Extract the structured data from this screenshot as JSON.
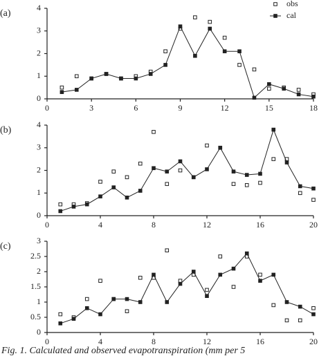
{
  "chart_data": [
    {
      "type": "line",
      "label": "(a)",
      "x": [
        1,
        2,
        3,
        4,
        5,
        6,
        7,
        8,
        9,
        10,
        11,
        12,
        13,
        14,
        15,
        16,
        17,
        18
      ],
      "xlim": [
        0,
        18
      ],
      "xticks": [
        0,
        3,
        6,
        9,
        12,
        15,
        18
      ],
      "ylim": [
        0,
        4
      ],
      "yticks": [
        0,
        1,
        2,
        3,
        4
      ],
      "legend": "upper right",
      "series": [
        {
          "name": "obs",
          "color": "#222222",
          "marker": "open-square",
          "line": false,
          "values": [
            0.5,
            1.0,
            0.9,
            1.1,
            0.9,
            1.0,
            1.2,
            2.1,
            3.1,
            3.6,
            3.4,
            2.7,
            1.5,
            1.3,
            0.45,
            0.5,
            0.4,
            0.2
          ]
        },
        {
          "name": "cal",
          "color": "#222222",
          "marker": "square",
          "line": true,
          "values": [
            0.3,
            0.4,
            0.9,
            1.1,
            0.9,
            0.9,
            1.1,
            1.5,
            3.2,
            1.9,
            3.1,
            2.1,
            2.1,
            0.05,
            0.65,
            0.45,
            0.2,
            0.1
          ]
        }
      ]
    },
    {
      "type": "line",
      "label": "(b)",
      "x": [
        1,
        2,
        3,
        4,
        5,
        6,
        7,
        8,
        9,
        10,
        11,
        12,
        13,
        14,
        15,
        16,
        17,
        18,
        19,
        20
      ],
      "xlim": [
        0,
        20
      ],
      "xticks": [
        0,
        4,
        8,
        12,
        16,
        20
      ],
      "ylim": [
        0,
        4
      ],
      "yticks": [
        0,
        1,
        2,
        3,
        4
      ],
      "series": [
        {
          "color": "#222222",
          "marker": "open-square",
          "line": false,
          "values": [
            0.5,
            0.5,
            0.55,
            1.5,
            1.95,
            1.7,
            2.3,
            3.7,
            1.4,
            2.0,
            1.7,
            3.1,
            3.0,
            1.4,
            1.35,
            1.45,
            2.5,
            2.5,
            1.0,
            0.7
          ]
        },
        {
          "color": "#222222",
          "marker": "square",
          "line": true,
          "values": [
            0.2,
            0.4,
            0.5,
            0.85,
            1.25,
            0.8,
            1.1,
            2.1,
            1.95,
            2.4,
            1.7,
            2.05,
            3.0,
            1.95,
            1.8,
            1.85,
            3.8,
            2.35,
            1.3,
            1.2
          ]
        }
      ]
    },
    {
      "type": "line",
      "label": "(c)",
      "x": [
        1,
        2,
        3,
        4,
        5,
        6,
        7,
        8,
        9,
        10,
        11,
        12,
        13,
        14,
        15,
        16,
        17,
        18,
        19,
        20
      ],
      "xlim": [
        0,
        20
      ],
      "xticks": [
        0,
        4,
        8,
        12,
        16,
        20
      ],
      "ylim": [
        0,
        3
      ],
      "yticks": [
        0,
        0.5,
        1,
        1.5,
        2,
        2.5,
        3
      ],
      "series": [
        {
          "color": "#222222",
          "marker": "open-square",
          "line": false,
          "values": [
            0.6,
            0.5,
            1.1,
            1.7,
            1.1,
            0.7,
            1.8,
            1.8,
            2.7,
            1.7,
            1.9,
            1.4,
            2.5,
            1.5,
            2.5,
            1.9,
            0.9,
            0.4,
            0.4,
            0.8
          ]
        },
        {
          "color": "#222222",
          "marker": "square",
          "line": true,
          "values": [
            0.3,
            0.45,
            0.8,
            0.6,
            1.1,
            1.1,
            1.0,
            1.9,
            1.0,
            1.6,
            2.0,
            1.2,
            1.9,
            2.1,
            2.6,
            1.7,
            1.9,
            1.0,
            0.85,
            0.6
          ]
        }
      ]
    }
  ],
  "caption": "Fig. 1. Calculated and observed evapotranspiration (mm per 5"
}
